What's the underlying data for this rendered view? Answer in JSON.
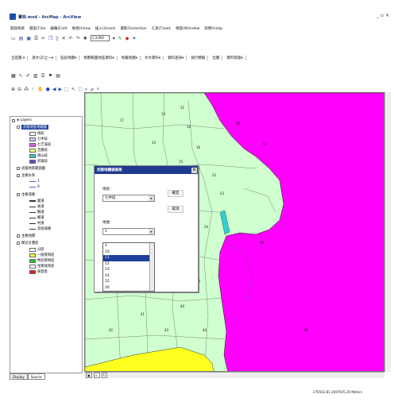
{
  "title": "寶林.mxd - ArcMap - ArcView",
  "window_controls": "_ ▫ ×",
  "menu": [
    "開啟系統",
    "檔案(F)ile",
    "編輯(E)dit",
    "檢視(V)iew",
    "插入(I)nsert",
    "選取(S)election",
    "工具(T)ools",
    "視窗(W)indow",
    "說明(H)elp"
  ],
  "toolbar_scale": "1:3,992",
  "menu2": [
    "全區圖 ▾",
    "放大(Z)之一▾",
    "區段地圖▾",
    "規劃範圍地區資料▾",
    "地籍地圖▾",
    "水文資料▾",
    "資料查詢▾",
    "執行模擬",
    "出圖",
    "資料管理▾"
  ],
  "toc": {
    "root": "Layers",
    "group1": "武陵地區地籍圖",
    "group1_items": [
      {
        "label": "地段",
        "color": "#ffffff"
      },
      {
        "label": "七中段",
        "color": "#c9c9ff"
      },
      {
        "label": "七芝溪段",
        "color": "#e35be3"
      },
      {
        "label": "芝蘭段",
        "color": "#ffff80"
      },
      {
        "label": "崗山段",
        "color": "#40c0c0"
      },
      {
        "label": "武陵段",
        "color": "#5050d0"
      }
    ],
    "group2": "武陵地區範圍圖",
    "group3": "主要水系",
    "group3_items": [
      "1",
      "0"
    ],
    "group4": "主要道路",
    "group4_items": [
      "國道",
      "省道",
      "縣道",
      "鄉道",
      "村道",
      "其他道路"
    ],
    "group5": "主要地標",
    "group6": "鄰近計畫區",
    "group6_items": [
      {
        "label": "分區",
        "color": "#ffffff"
      },
      {
        "label": "一般管制區",
        "color": "#ffff40"
      },
      {
        "label": "特別管制區",
        "color": "#30c030"
      },
      {
        "label": "生態保育區",
        "color": "#ffffff"
      },
      {
        "label": "核發區",
        "color": "#e02020"
      }
    ],
    "tabs": [
      "Display",
      "Source"
    ]
  },
  "dialog": {
    "title": "武陵地籍號查詢",
    "close": "×",
    "label_section": "地段：",
    "section_value": "七中段",
    "label_number": "地號：",
    "number_value": "2",
    "ok": "確定",
    "cancel": "取消",
    "list": [
      "1",
      "10",
      "11",
      "12",
      "13",
      "14",
      "15",
      "16"
    ],
    "selected_index": 2
  },
  "map_labels": [
    "11",
    "12",
    "13",
    "14",
    "15",
    "16",
    "17",
    "18",
    "19",
    "20",
    "21",
    "22",
    "23",
    "24",
    "25",
    "27",
    "30",
    "31",
    "38",
    "40",
    "41",
    "42",
    "43",
    "44",
    "45",
    "52",
    "78",
    "80"
  ],
  "status_coords": "276562.81  2697045.26 Meters"
}
